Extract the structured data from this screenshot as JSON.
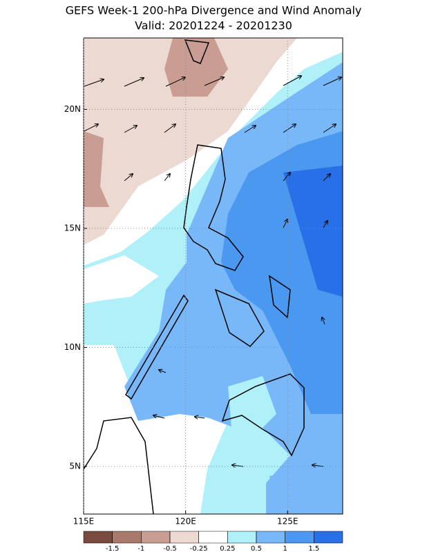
{
  "title": "GEFS Week-1 200-hPa Divergence and Wind Anomaly",
  "subtitle": "Valid: 20201224 - 20201230",
  "map": {
    "xlim": [
      115,
      127.7
    ],
    "ylim": [
      3,
      23
    ],
    "xticks": [
      {
        "value": 115,
        "label": "115E"
      },
      {
        "value": 120,
        "label": "120E"
      },
      {
        "value": 125,
        "label": "125E"
      }
    ],
    "yticks": [
      {
        "value": 5,
        "label": "5N"
      },
      {
        "value": 10,
        "label": "10N"
      },
      {
        "value": 15,
        "label": "15N"
      },
      {
        "value": 20,
        "label": "20N"
      }
    ],
    "grid": true
  },
  "colorbar": {
    "levels": [
      -1.5,
      -1,
      -0.5,
      -0.25,
      0.25,
      0.5,
      1,
      1.5
    ],
    "colors": [
      "#7a4a3e",
      "#a97a6c",
      "#c99d92",
      "#ecd9d1",
      "#ffffff",
      "#b0f0f8",
      "#78b8f8",
      "#4a98f0",
      "#2870e8"
    ]
  }
}
